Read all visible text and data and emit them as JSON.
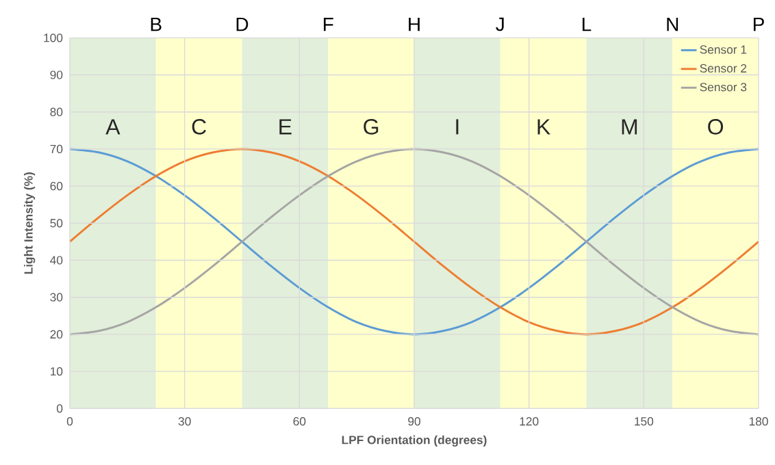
{
  "chart_data": {
    "type": "line",
    "xlabel": "LPF Orientation (degrees)",
    "ylabel": "Light Intensity (%)",
    "x": [
      0,
      7.5,
      15,
      22.5,
      30,
      37.5,
      45,
      52.5,
      60,
      67.5,
      75,
      82.5,
      90,
      97.5,
      105,
      112.5,
      120,
      127.5,
      135,
      142.5,
      150,
      157.5,
      165,
      172.5,
      180
    ],
    "series": [
      {
        "name": "Sensor 1",
        "color": "#5b9bd5",
        "values": [
          70,
          69.1,
          66.7,
          62.7,
          57.5,
          51.5,
          45,
          38.5,
          32.5,
          27.3,
          23.3,
          20.9,
          20,
          20.9,
          23.3,
          27.3,
          32.5,
          38.5,
          45,
          51.5,
          57.5,
          62.7,
          66.7,
          69.1,
          70
        ]
      },
      {
        "name": "Sensor 2",
        "color": "#ed7d31",
        "values": [
          45,
          51.5,
          57.5,
          62.7,
          66.7,
          69.1,
          70,
          69.1,
          66.7,
          62.7,
          57.5,
          51.5,
          45,
          38.5,
          32.5,
          27.3,
          23.3,
          20.9,
          20,
          20.9,
          23.3,
          27.3,
          32.5,
          38.5,
          45
        ]
      },
      {
        "name": "Sensor 3",
        "color": "#a5a5a5",
        "values": [
          20,
          20.9,
          23.3,
          27.3,
          32.5,
          38.5,
          45,
          51.5,
          57.5,
          62.7,
          66.7,
          69.1,
          70,
          69.1,
          66.7,
          62.7,
          57.5,
          51.5,
          45,
          38.5,
          32.5,
          27.3,
          23.3,
          20.9,
          20
        ]
      }
    ],
    "xlim": [
      0,
      180
    ],
    "xticks": [
      0,
      30,
      60,
      90,
      120,
      150,
      180
    ],
    "ylim": [
      0,
      100
    ],
    "yticks": [
      0,
      10,
      20,
      30,
      40,
      50,
      60,
      70,
      80,
      90,
      100
    ],
    "annotations": [
      "B",
      "D",
      "F",
      "H",
      "J",
      "L",
      "N",
      "P"
    ],
    "bands": [
      {
        "axis": "x",
        "from": 0,
        "to": 22.5,
        "label": "A",
        "color": "#e2efda"
      },
      {
        "axis": "x",
        "from": 22.5,
        "to": 45,
        "label": "C",
        "color": "#ffffcc"
      },
      {
        "axis": "x",
        "from": 45,
        "to": 67.5,
        "label": "E",
        "color": "#e2efda"
      },
      {
        "axis": "x",
        "from": 67.5,
        "to": 90,
        "label": "G",
        "color": "#ffffcc"
      },
      {
        "axis": "x",
        "from": 90,
        "to": 112.5,
        "label": "I",
        "color": "#e2efda"
      },
      {
        "axis": "x",
        "from": 112.5,
        "to": 135,
        "label": "K",
        "color": "#ffffcc"
      },
      {
        "axis": "x",
        "from": 135,
        "to": 157.5,
        "label": "M",
        "color": "#e2efda"
      },
      {
        "axis": "x",
        "from": 157.5,
        "to": 180,
        "label": "O",
        "color": "#ffffcc"
      }
    ],
    "grid": true,
    "legend": "top right",
    "marker": "none",
    "line_style": "solid"
  }
}
